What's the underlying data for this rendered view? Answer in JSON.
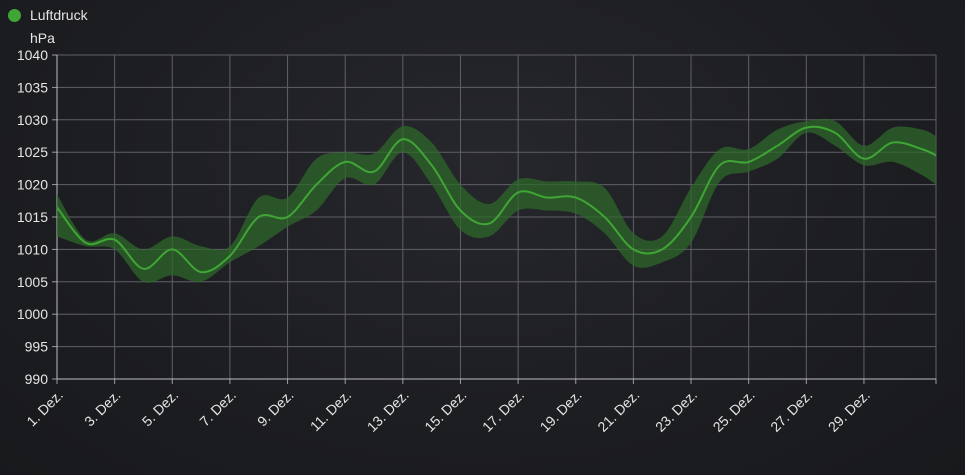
{
  "chart_data": {
    "type": "line",
    "title": "",
    "xlabel": "",
    "ylabel": "hPa",
    "ylim": [
      990,
      1040
    ],
    "yticks": [
      990,
      995,
      1000,
      1005,
      1010,
      1015,
      1020,
      1025,
      1030,
      1035,
      1040
    ],
    "x_range": [
      1,
      31.5
    ],
    "xticks": [
      {
        "label": "1. Dez.",
        "day": 1
      },
      {
        "label": "3. Dez.",
        "day": 3
      },
      {
        "label": "5. Dez.",
        "day": 5
      },
      {
        "label": "7. Dez.",
        "day": 7
      },
      {
        "label": "9. Dez.",
        "day": 9
      },
      {
        "label": "11. Dez.",
        "day": 11
      },
      {
        "label": "13. Dez.",
        "day": 13
      },
      {
        "label": "15. Dez.",
        "day": 15
      },
      {
        "label": "17. Dez.",
        "day": 17
      },
      {
        "label": "19. Dez.",
        "day": 19
      },
      {
        "label": "21. Dez.",
        "day": 21
      },
      {
        "label": "23. Dez.",
        "day": 23
      },
      {
        "label": "25. Dez.",
        "day": 25
      },
      {
        "label": "27. Dez.",
        "day": 27
      },
      {
        "label": "29. Dez.",
        "day": 29
      }
    ],
    "grid": true,
    "legend_position": "top-left",
    "series": [
      {
        "name": "Luftdruck",
        "color": "#3fa535",
        "band_color": "#2e6a2a",
        "x": [
          1,
          2,
          3,
          4,
          5,
          6,
          7,
          8,
          9,
          10,
          11,
          12,
          13,
          14,
          15,
          16,
          17,
          18,
          19,
          20,
          21,
          22,
          23,
          24,
          25,
          26,
          27,
          28,
          29,
          30,
          31,
          31.5
        ],
        "y": [
          1016.5,
          1011,
          1011.5,
          1007,
          1010,
          1006.5,
          1009,
          1015,
          1015,
          1020,
          1023.5,
          1022,
          1027,
          1023,
          1016,
          1014,
          1018.8,
          1018,
          1018,
          1015,
          1010,
          1010,
          1015,
          1023,
          1023.5,
          1026,
          1028.8,
          1028,
          1024,
          1026.5,
          1025.5,
          1024.5
        ],
        "max": [
          1018.5,
          1011.5,
          1012.5,
          1010,
          1012,
          1010.5,
          1010.5,
          1018,
          1018,
          1024,
          1025,
          1024.8,
          1029,
          1026.5,
          1020,
          1017,
          1020.8,
          1020.5,
          1020.5,
          1019.5,
          1012.5,
          1012,
          1019.5,
          1025.5,
          1025.5,
          1028.5,
          1029.8,
          1029.8,
          1026,
          1028.8,
          1028.5,
          1027.5
        ],
        "min": [
          1012,
          1010.5,
          1010,
          1005,
          1006,
          1005,
          1008,
          1010.5,
          1013.5,
          1016,
          1021,
          1020,
          1025,
          1020,
          1013,
          1012,
          1016,
          1016,
          1015.5,
          1012.5,
          1007.5,
          1008,
          1011,
          1020.5,
          1022,
          1024,
          1028,
          1026,
          1023,
          1023.5,
          1021.5,
          1020
        ]
      }
    ]
  }
}
